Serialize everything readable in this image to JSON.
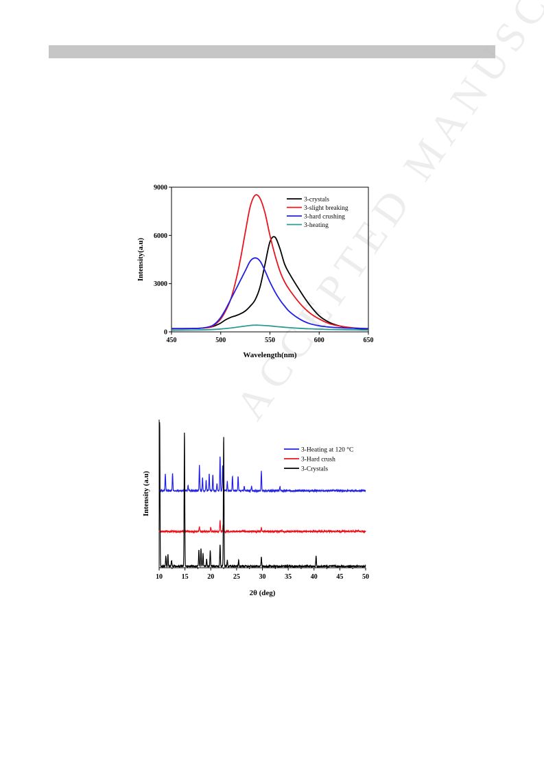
{
  "page": {
    "watermark_text": "ACCEPTED MANUSCRIPT"
  },
  "chart_data": [
    {
      "type": "line",
      "title": "",
      "xlabel": "Wavelength(nm)",
      "ylabel": "Intensity(a.u)",
      "xlim": [
        450,
        650
      ],
      "ylim": [
        0,
        9000
      ],
      "xticks": [
        450,
        500,
        550,
        600,
        650
      ],
      "yticks": [
        0,
        3000,
        6000,
        9000
      ],
      "legend_position": "top-right",
      "grid": false,
      "series": [
        {
          "name": "3-crystals",
          "color": "#000000",
          "x": [
            450,
            470,
            480,
            490,
            495,
            500,
            505,
            510,
            515,
            520,
            525,
            530,
            535,
            540,
            545,
            550,
            555,
            560,
            565,
            570,
            580,
            590,
            600,
            610,
            620,
            630,
            640,
            650
          ],
          "y": [
            200,
            210,
            230,
            300,
            400,
            550,
            750,
            900,
            1000,
            1120,
            1300,
            1600,
            2000,
            2800,
            4200,
            5600,
            5900,
            5200,
            4200,
            3600,
            2600,
            1700,
            1000,
            600,
            380,
            260,
            200,
            180
          ]
        },
        {
          "name": "3-slight breaking",
          "color": "#e8141e",
          "x": [
            450,
            470,
            480,
            490,
            495,
            500,
            505,
            510,
            515,
            520,
            525,
            530,
            535,
            540,
            545,
            550,
            555,
            560,
            565,
            570,
            580,
            590,
            600,
            610,
            620,
            630,
            640,
            650
          ],
          "y": [
            200,
            210,
            230,
            300,
            500,
            800,
            1300,
            2000,
            3100,
            4500,
            6200,
            7800,
            8500,
            8300,
            7400,
            6000,
            4800,
            3800,
            3100,
            2600,
            1800,
            1200,
            800,
            520,
            370,
            280,
            220,
            200
          ]
        },
        {
          "name": "3-hard crushing",
          "color": "#1f1fe6",
          "x": [
            450,
            470,
            480,
            490,
            495,
            500,
            505,
            510,
            515,
            520,
            525,
            530,
            535,
            540,
            545,
            550,
            555,
            560,
            565,
            570,
            580,
            590,
            600,
            610,
            620,
            630,
            640,
            650
          ],
          "y": [
            200,
            210,
            230,
            350,
            550,
            900,
            1400,
            2000,
            2600,
            3200,
            3800,
            4400,
            4600,
            4400,
            3800,
            3100,
            2500,
            2000,
            1600,
            1250,
            800,
            520,
            380,
            300,
            260,
            230,
            220,
            200
          ]
        },
        {
          "name": "3-heating",
          "color": "#2a9a94",
          "x": [
            450,
            470,
            480,
            490,
            500,
            510,
            520,
            530,
            535,
            540,
            550,
            560,
            570,
            580,
            590,
            600,
            610,
            620,
            630,
            640,
            650
          ],
          "y": [
            100,
            110,
            120,
            140,
            180,
            240,
            320,
            400,
            420,
            410,
            370,
            310,
            260,
            220,
            190,
            170,
            150,
            140,
            130,
            120,
            110
          ]
        }
      ]
    },
    {
      "type": "line",
      "title": "",
      "xlabel": "2θ (deg)",
      "ylabel": "Intensity (a.u)",
      "xlim": [
        10,
        50
      ],
      "xticks": [
        10,
        15,
        20,
        25,
        30,
        35,
        40,
        45,
        50
      ],
      "ylim": [
        0,
        1
      ],
      "legend_position": "top-right",
      "grid": false,
      "series": [
        {
          "name": "3-Heating at 120 °C",
          "color": "#1f1fe6",
          "baseline": 0.52,
          "noise": 0.006,
          "peaks": [
            [
              11.2,
              0.11
            ],
            [
              12.6,
              0.12
            ],
            [
              15.6,
              0.035
            ],
            [
              17.8,
              0.17
            ],
            [
              18.4,
              0.09
            ],
            [
              19.1,
              0.07
            ],
            [
              19.7,
              0.11
            ],
            [
              20.4,
              0.11
            ],
            [
              21.2,
              0.05
            ],
            [
              21.8,
              0.23
            ],
            [
              22.3,
              0.17
            ],
            [
              23.2,
              0.06
            ],
            [
              24.2,
              0.1
            ],
            [
              25.3,
              0.1
            ],
            [
              26.5,
              0.03
            ],
            [
              27.9,
              0.03
            ],
            [
              29.8,
              0.13
            ],
            [
              33.4,
              0.03
            ]
          ]
        },
        {
          "name": "3-Hard crush",
          "color": "#e8141e",
          "baseline": 0.245,
          "noise": 0.006,
          "peaks": [
            [
              17.8,
              0.035
            ],
            [
              20.0,
              0.03
            ],
            [
              21.8,
              0.075
            ],
            [
              22.4,
              0.045
            ],
            [
              29.8,
              0.025
            ]
          ]
        },
        {
          "name": "3-Crystals",
          "color": "#000000",
          "baseline": 0.01,
          "noise": 0.005,
          "peaks": [
            [
              10.1,
              0.99
            ],
            [
              11.3,
              0.07
            ],
            [
              11.7,
              0.08
            ],
            [
              12.4,
              0.04
            ],
            [
              14.9,
              0.91
            ],
            [
              17.7,
              0.11
            ],
            [
              18.1,
              0.12
            ],
            [
              18.5,
              0.09
            ],
            [
              19.2,
              0.05
            ],
            [
              19.9,
              0.11
            ],
            [
              21.8,
              0.15
            ],
            [
              22.5,
              0.88
            ],
            [
              23.2,
              0.04
            ],
            [
              25.4,
              0.04
            ],
            [
              29.8,
              0.06
            ],
            [
              40.4,
              0.07
            ]
          ]
        }
      ]
    }
  ]
}
